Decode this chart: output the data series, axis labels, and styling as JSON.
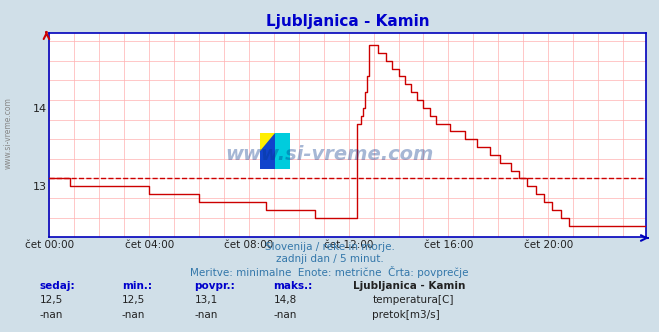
{
  "title": "Ljubljanica - Kamin",
  "subtitle1": "Slovenija / reke in morje.",
  "subtitle2": "zadnji dan / 5 minut.",
  "subtitle3": "Meritve: minimalne  Enote: metrične  Črta: povprečje",
  "bg_color": "#d0dfe8",
  "plot_bg_color": "#ffffff",
  "grid_color": "#ffb0b0",
  "axis_color": "#0000bb",
  "line_color": "#cc0000",
  "avg_line_color": "#cc0000",
  "avg_value": 13.1,
  "y_range_min": 12.35,
  "y_range_max": 14.95,
  "y_ticks": [
    13.0,
    14.0
  ],
  "x_ticks_labels": [
    "čet 00:00",
    "čet 04:00",
    "čet 08:00",
    "čet 12:00",
    "čet 16:00",
    "čet 20:00"
  ],
  "x_ticks_pos": [
    0,
    48,
    96,
    144,
    192,
    240
  ],
  "total_points": 288,
  "watermark_text": "www.si-vreme.com",
  "stats_sedaj": "12,5",
  "stats_min": "12,5",
  "stats_povpr": "13,1",
  "stats_maks": "14,8",
  "station_name": "Ljubljanica - Kamin",
  "legend1_label": "temperatura[C]",
  "legend1_color": "#cc0000",
  "legend2_label": "pretok[m3/s]",
  "legend2_color": "#009900",
  "temperature_data": [
    13.1,
    13.1,
    13.1,
    13.1,
    13.1,
    13.1,
    13.1,
    13.1,
    13.1,
    13.1,
    13.0,
    13.0,
    13.0,
    13.0,
    13.0,
    13.0,
    13.0,
    13.0,
    13.0,
    13.0,
    13.0,
    13.0,
    13.0,
    13.0,
    13.0,
    13.0,
    13.0,
    13.0,
    13.0,
    13.0,
    13.0,
    13.0,
    13.0,
    13.0,
    13.0,
    13.0,
    13.0,
    13.0,
    13.0,
    13.0,
    13.0,
    13.0,
    13.0,
    13.0,
    13.0,
    13.0,
    13.0,
    13.0,
    12.9,
    12.9,
    12.9,
    12.9,
    12.9,
    12.9,
    12.9,
    12.9,
    12.9,
    12.9,
    12.9,
    12.9,
    12.9,
    12.9,
    12.9,
    12.9,
    12.9,
    12.9,
    12.9,
    12.9,
    12.9,
    12.9,
    12.9,
    12.9,
    12.8,
    12.8,
    12.8,
    12.8,
    12.8,
    12.8,
    12.8,
    12.8,
    12.8,
    12.8,
    12.8,
    12.8,
    12.8,
    12.8,
    12.8,
    12.8,
    12.8,
    12.8,
    12.8,
    12.8,
    12.8,
    12.8,
    12.8,
    12.8,
    12.8,
    12.8,
    12.8,
    12.8,
    12.8,
    12.8,
    12.8,
    12.8,
    12.7,
    12.7,
    12.7,
    12.7,
    12.7,
    12.7,
    12.7,
    12.7,
    12.7,
    12.7,
    12.7,
    12.7,
    12.7,
    12.7,
    12.7,
    12.7,
    12.7,
    12.7,
    12.7,
    12.7,
    12.7,
    12.7,
    12.7,
    12.7,
    12.6,
    12.6,
    12.6,
    12.6,
    12.6,
    12.6,
    12.6,
    12.6,
    12.6,
    12.6,
    12.6,
    12.6,
    12.6,
    12.6,
    12.6,
    12.6,
    12.6,
    12.6,
    12.6,
    12.6,
    13.8,
    13.8,
    13.9,
    14.0,
    14.2,
    14.4,
    14.8,
    14.8,
    14.8,
    14.8,
    14.7,
    14.7,
    14.7,
    14.7,
    14.6,
    14.6,
    14.6,
    14.5,
    14.5,
    14.5,
    14.4,
    14.4,
    14.4,
    14.3,
    14.3,
    14.3,
    14.2,
    14.2,
    14.2,
    14.1,
    14.1,
    14.1,
    14.0,
    14.0,
    14.0,
    13.9,
    13.9,
    13.9,
    13.8,
    13.8,
    13.8,
    13.8,
    13.8,
    13.8,
    13.8,
    13.7,
    13.7,
    13.7,
    13.7,
    13.7,
    13.7,
    13.7,
    13.6,
    13.6,
    13.6,
    13.6,
    13.6,
    13.6,
    13.5,
    13.5,
    13.5,
    13.5,
    13.5,
    13.5,
    13.4,
    13.4,
    13.4,
    13.4,
    13.4,
    13.3,
    13.3,
    13.3,
    13.3,
    13.3,
    13.2,
    13.2,
    13.2,
    13.2,
    13.1,
    13.1,
    13.1,
    13.1,
    13.0,
    13.0,
    13.0,
    13.0,
    12.9,
    12.9,
    12.9,
    12.9,
    12.8,
    12.8,
    12.8,
    12.8,
    12.7,
    12.7,
    12.7,
    12.7,
    12.6,
    12.6,
    12.6,
    12.6,
    12.5,
    12.5,
    12.5,
    12.5,
    12.5,
    12.5,
    12.5,
    12.5
  ]
}
